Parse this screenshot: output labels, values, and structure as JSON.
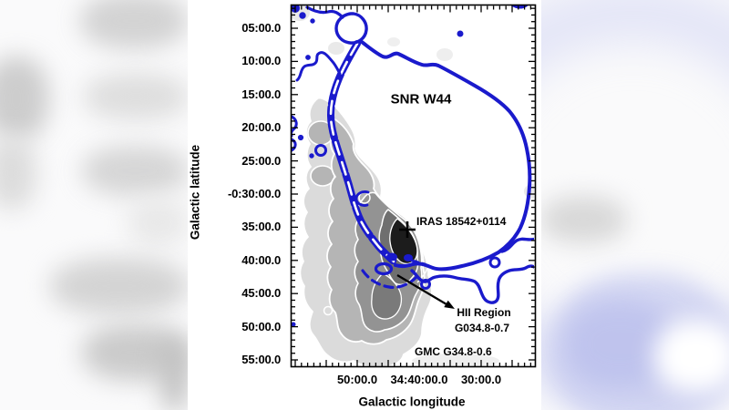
{
  "axes": {
    "y": {
      "title": "Galactic latitude",
      "tick_labels": [
        "05:00.0",
        "10:00.0",
        "15:00.0",
        "20:00.0",
        "25:00.0",
        "-0:30:00.0",
        "35:00.0",
        "40:00.0",
        "45:00.0",
        "50:00.0",
        "55:00.0"
      ]
    },
    "x": {
      "title": "Galactic longitude",
      "tick_labels": [
        "50:00.0",
        "34:40:00.0",
        "30:00.0"
      ]
    }
  },
  "annotations": {
    "snr": "SNR W44",
    "iras": "IRAS 18542+0114",
    "hii_line1": "HII Region",
    "hii_line2": "G034.8-0.7",
    "gmc": "GMC G34.8-0.6"
  },
  "colors": {
    "snr_contour_blue": "#1a1acc",
    "cloud_contour_white": "#ffffff",
    "marker_black": "#000000",
    "canvas_background": "#ffffff"
  },
  "chart_data": {
    "type": "heatmap",
    "title": "SNR W44 radio shell (blue contours) overlaid on molecular cloud GMC G34.8-0.6 (grayscale map with white contours)",
    "xlabel": "Galactic longitude",
    "ylabel": "Galactic latitude",
    "x_tick_labels": [
      "50:00.0",
      "34:40:00.0",
      "30:00.0"
    ],
    "y_tick_labels": [
      "05:00.0",
      "10:00.0",
      "15:00.0",
      "20:00.0",
      "25:00.0",
      "-0:30:00.0",
      "35:00.0",
      "40:00.0",
      "45:00.0",
      "50:00.0",
      "55:00.0"
    ],
    "x_range": [
      "~35:01 (left)",
      "~34:21 (right)"
    ],
    "y_range": [
      "~-0:01.5 (top)",
      "~-0:56 (bottom)"
    ],
    "grid": false,
    "legend": "none",
    "series": [
      {
        "name": "SNR W44",
        "style": "thick blue contour",
        "description": "large supernova-remnant shell roughly 28 arcmin across filling the upper-right of the map, left edge a doubled contour lane running diagonally from (l~34:53, b~-0:07) to (l~34:44, b~-0:38)"
      },
      {
        "name": "GMC G34.8-0.6",
        "style": "grayscale intensity with nested white contours",
        "description": "elongated molecular cloud along the left/center from b~-0:18 to b~-0:57, darkest core near l=34:42, b=-0:37"
      }
    ],
    "markers": [
      {
        "name": "IRAS 18542+0114",
        "symbol": "black cross",
        "l": "34:41.9",
        "b": "-0:35.4"
      },
      {
        "name": "HII Region G034.8-0.7",
        "symbol": "black arrow from blue knots to label",
        "l": "~34:46",
        "b": "~-0:40"
      }
    ]
  }
}
